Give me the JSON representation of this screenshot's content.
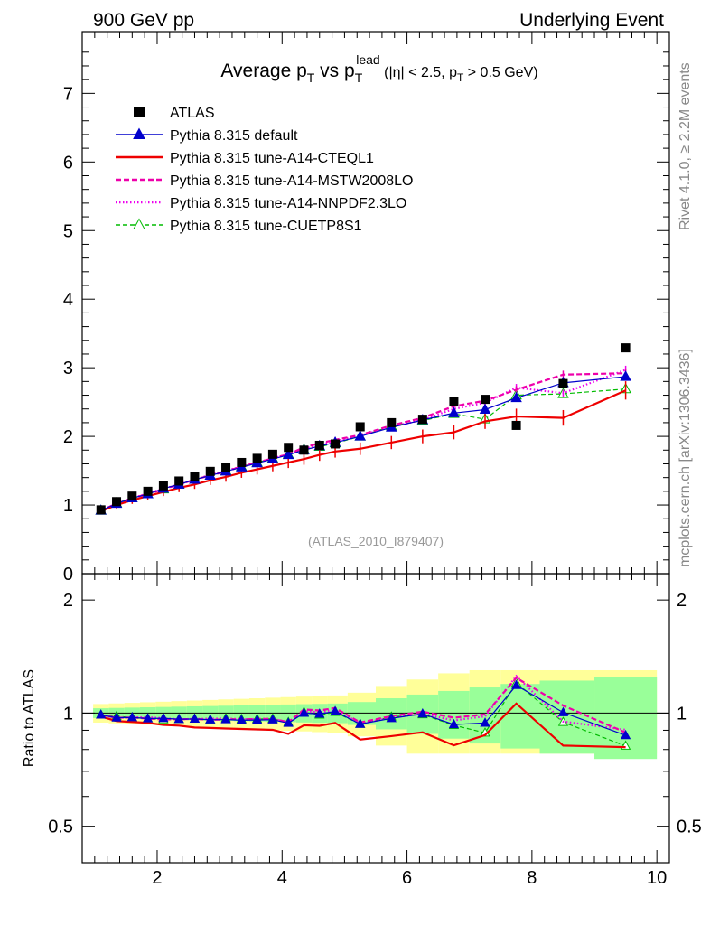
{
  "header": {
    "left": "900 GeV pp",
    "right": "Underlying Event"
  },
  "title": {
    "main": "Average p",
    "sub1": "T",
    "mid": " vs p",
    "sub2": "T",
    "sup2": "lead",
    "cond_open": " (|η| < 2.5, p",
    "cond_sub": "T",
    "cond_close": " > 0.5 GeV)"
  },
  "side_labels": {
    "rivet": "Rivet 4.1.0, ≥ 2.2M events",
    "mcplots": "mcplots.cern.ch [arXiv:1306.3436]"
  },
  "watermark": "(ATLAS_2010_I879407)",
  "ratio_ylabel": "Ratio to ATLAS",
  "colors": {
    "data": "#000000",
    "default": "#0000cc",
    "cteq": "#ee0000",
    "mstw": "#ee00aa",
    "nnpdf": "#ee00ee",
    "cuetp": "#00bb00",
    "band_yellow": "#ffff99",
    "band_green": "#99ff99"
  },
  "chart_data": {
    "type": "scatter",
    "x": [
      1.1,
      1.35,
      1.6,
      1.85,
      2.1,
      2.35,
      2.6,
      2.85,
      3.1,
      3.35,
      3.6,
      3.85,
      4.1,
      4.35,
      4.6,
      4.85,
      5.25,
      5.75,
      6.25,
      6.75,
      7.25,
      7.75,
      8.5,
      9.5
    ],
    "xlim": [
      0.8,
      10.2
    ],
    "xticks": [
      2,
      4,
      6,
      8,
      10
    ],
    "main_ylim": [
      0,
      7.9
    ],
    "main_yticks": [
      0,
      1,
      2,
      3,
      4,
      5,
      6,
      7
    ],
    "ratio_ylim": [
      0.4,
      2.35
    ],
    "ratio_yticks": [
      0.5,
      1,
      2
    ],
    "series": [
      {
        "key": "data",
        "name": "ATLAS",
        "values": [
          0.93,
          1.05,
          1.13,
          1.2,
          1.28,
          1.35,
          1.42,
          1.49,
          1.55,
          1.62,
          1.68,
          1.74,
          1.84,
          1.8,
          1.87,
          1.89,
          2.14,
          2.2,
          2.25,
          2.51,
          2.54,
          2.16,
          2.77,
          3.29
        ]
      },
      {
        "key": "default",
        "name": "Pythia 8.315 default",
        "values": [
          0.92,
          1.02,
          1.1,
          1.16,
          1.24,
          1.3,
          1.37,
          1.43,
          1.49,
          1.55,
          1.61,
          1.67,
          1.73,
          1.8,
          1.86,
          1.91,
          2.0,
          2.13,
          2.24,
          2.34,
          2.39,
          2.56,
          2.78,
          2.87
        ]
      },
      {
        "key": "cteq",
        "name": "Pythia 8.315 tune-A14-CTEQL1",
        "values": [
          0.91,
          1.0,
          1.07,
          1.13,
          1.19,
          1.25,
          1.3,
          1.36,
          1.41,
          1.47,
          1.52,
          1.57,
          1.62,
          1.67,
          1.73,
          1.78,
          1.82,
          1.91,
          2.0,
          2.06,
          2.22,
          2.29,
          2.27,
          2.67
        ]
      },
      {
        "key": "mstw",
        "name": "Pythia 8.315 tune-A14-MSTW2008LO",
        "values": [
          0.92,
          1.02,
          1.1,
          1.16,
          1.23,
          1.3,
          1.37,
          1.43,
          1.49,
          1.56,
          1.62,
          1.68,
          1.74,
          1.84,
          1.9,
          1.95,
          2.02,
          2.16,
          2.27,
          2.44,
          2.52,
          2.68,
          2.9,
          2.92
        ]
      },
      {
        "key": "nnpdf",
        "name": "Pythia 8.315 tune-A14-NNPDF2.3LO",
        "values": [
          0.92,
          1.02,
          1.1,
          1.17,
          1.24,
          1.3,
          1.37,
          1.44,
          1.5,
          1.56,
          1.62,
          1.68,
          1.74,
          1.82,
          1.88,
          1.93,
          2.01,
          2.14,
          2.24,
          2.4,
          2.49,
          2.71,
          2.63,
          2.97
        ]
      },
      {
        "key": "cuetp",
        "name": "Pythia 8.315 tune-CUETP8S1",
        "values": [
          0.92,
          1.03,
          1.1,
          1.16,
          1.23,
          1.3,
          1.37,
          1.43,
          1.5,
          1.56,
          1.62,
          1.68,
          1.74,
          1.81,
          1.85,
          1.9,
          2.0,
          2.15,
          2.23,
          2.33,
          2.25,
          2.6,
          2.62,
          2.69
        ]
      }
    ],
    "legend_position": "top-left"
  }
}
